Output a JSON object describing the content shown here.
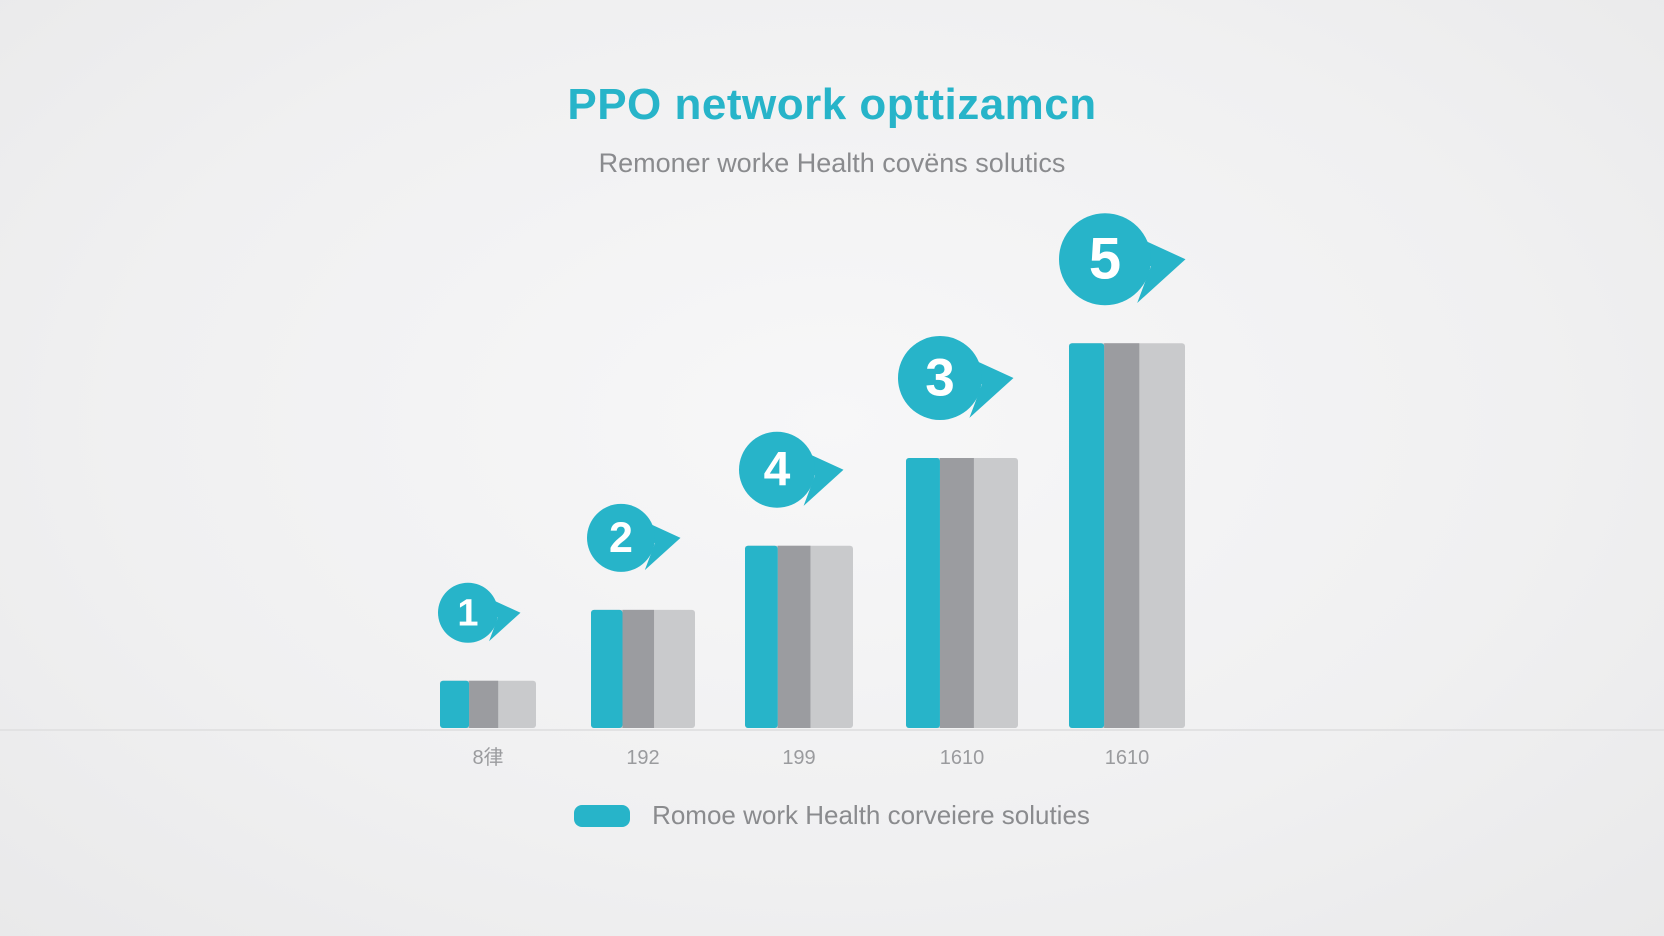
{
  "header": {
    "title": "PPO network opttizamcn",
    "subtitle": "Remoner worke Health covëns solutics"
  },
  "chart_data": {
    "type": "bar",
    "title": "PPO network opttizamcn",
    "subtitle": "Remoner worke Health covëns solutics",
    "categories": [
      "8律",
      "192",
      "199",
      "1610",
      "1610"
    ],
    "step_badges": [
      "1",
      "2",
      "4",
      "3",
      "5"
    ],
    "values": [
      7,
      17.5,
      27,
      40,
      57
    ],
    "ylim": [
      0,
      80
    ],
    "grid": false,
    "legend": {
      "position": "bottom-center",
      "label": "Romoe work Health corveiere soluties"
    },
    "colors": {
      "primary": "#27b4c9",
      "mid": "#9b9ca0",
      "light": "#c9cacc"
    }
  }
}
